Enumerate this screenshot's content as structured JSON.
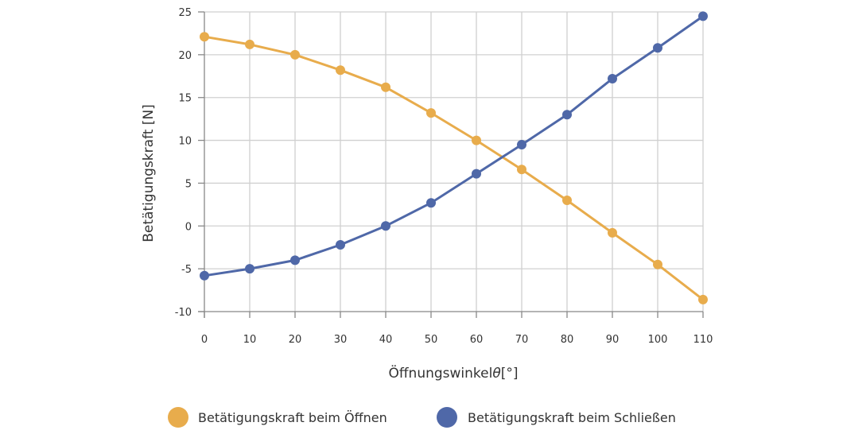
{
  "chart_data": {
    "type": "line",
    "xlabel": "Öffnungswinkel",
    "xlabel_symbol": "θ",
    "xlabel_unit": "[°]",
    "ylabel": "Betätigungskraft [N]",
    "xlim": [
      0,
      110
    ],
    "ylim": [
      -10,
      25
    ],
    "x": [
      0,
      10,
      20,
      30,
      40,
      50,
      60,
      70,
      80,
      90,
      100,
      110
    ],
    "x_ticks": [
      "0",
      "10",
      "20",
      "30",
      "40",
      "50",
      "60",
      "70",
      "80",
      "90",
      "100",
      "110"
    ],
    "y_ticks": [
      "25",
      "20",
      "15",
      "10",
      "5",
      "0",
      "-5",
      "-10"
    ],
    "y_tick_values": [
      25,
      20,
      15,
      10,
      5,
      0,
      -5,
      -10
    ],
    "grid": true,
    "legend_position": "bottom-center",
    "series": [
      {
        "name": "Betätigungskraft beim Öffnen",
        "color": "#e8ac4c",
        "values": [
          22.1,
          21.2,
          20.0,
          18.2,
          16.2,
          13.2,
          10.0,
          6.6,
          3.0,
          -0.8,
          -4.5,
          -8.6
        ]
      },
      {
        "name": "Betätigungskraft beim Schließen",
        "color": "#4f68a8",
        "values": [
          -5.8,
          -5.0,
          -4.0,
          -2.2,
          0.0,
          2.7,
          6.1,
          9.5,
          13.0,
          17.2,
          20.8,
          24.5
        ]
      }
    ]
  }
}
